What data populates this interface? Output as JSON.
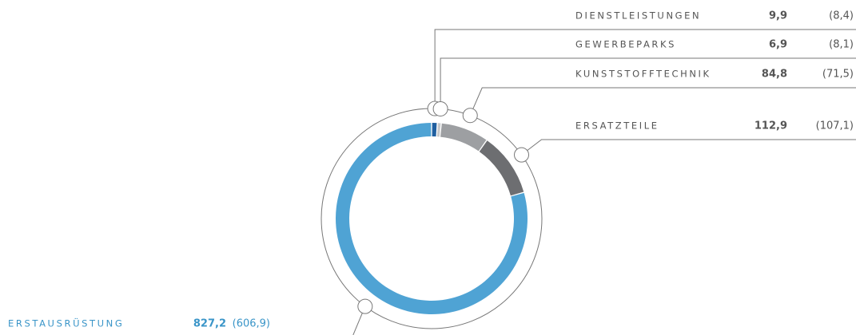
{
  "chart_data": {
    "type": "donut",
    "categories": [
      "DIENSTLEISTUNGEN",
      "GEWERBEPARKS",
      "KUNSTSTOFFTECHNIK",
      "ERSATZTEILE",
      "ERSTAUSRÜSTUNG"
    ],
    "values": [
      9.9,
      6.9,
      84.8,
      112.9,
      827.2
    ],
    "value_labels": [
      "9,9",
      "6,9",
      "84,8",
      "112,9",
      "827,2"
    ],
    "previous_labels": [
      "(8,4)",
      "(8,1)",
      "(71,5)",
      "(107,1)",
      "(606,9)"
    ],
    "colors": [
      "#1f5fa0",
      "#c6c8ca",
      "#9d9fa2",
      "#6d6e71",
      "#4fa3d4"
    ]
  }
}
